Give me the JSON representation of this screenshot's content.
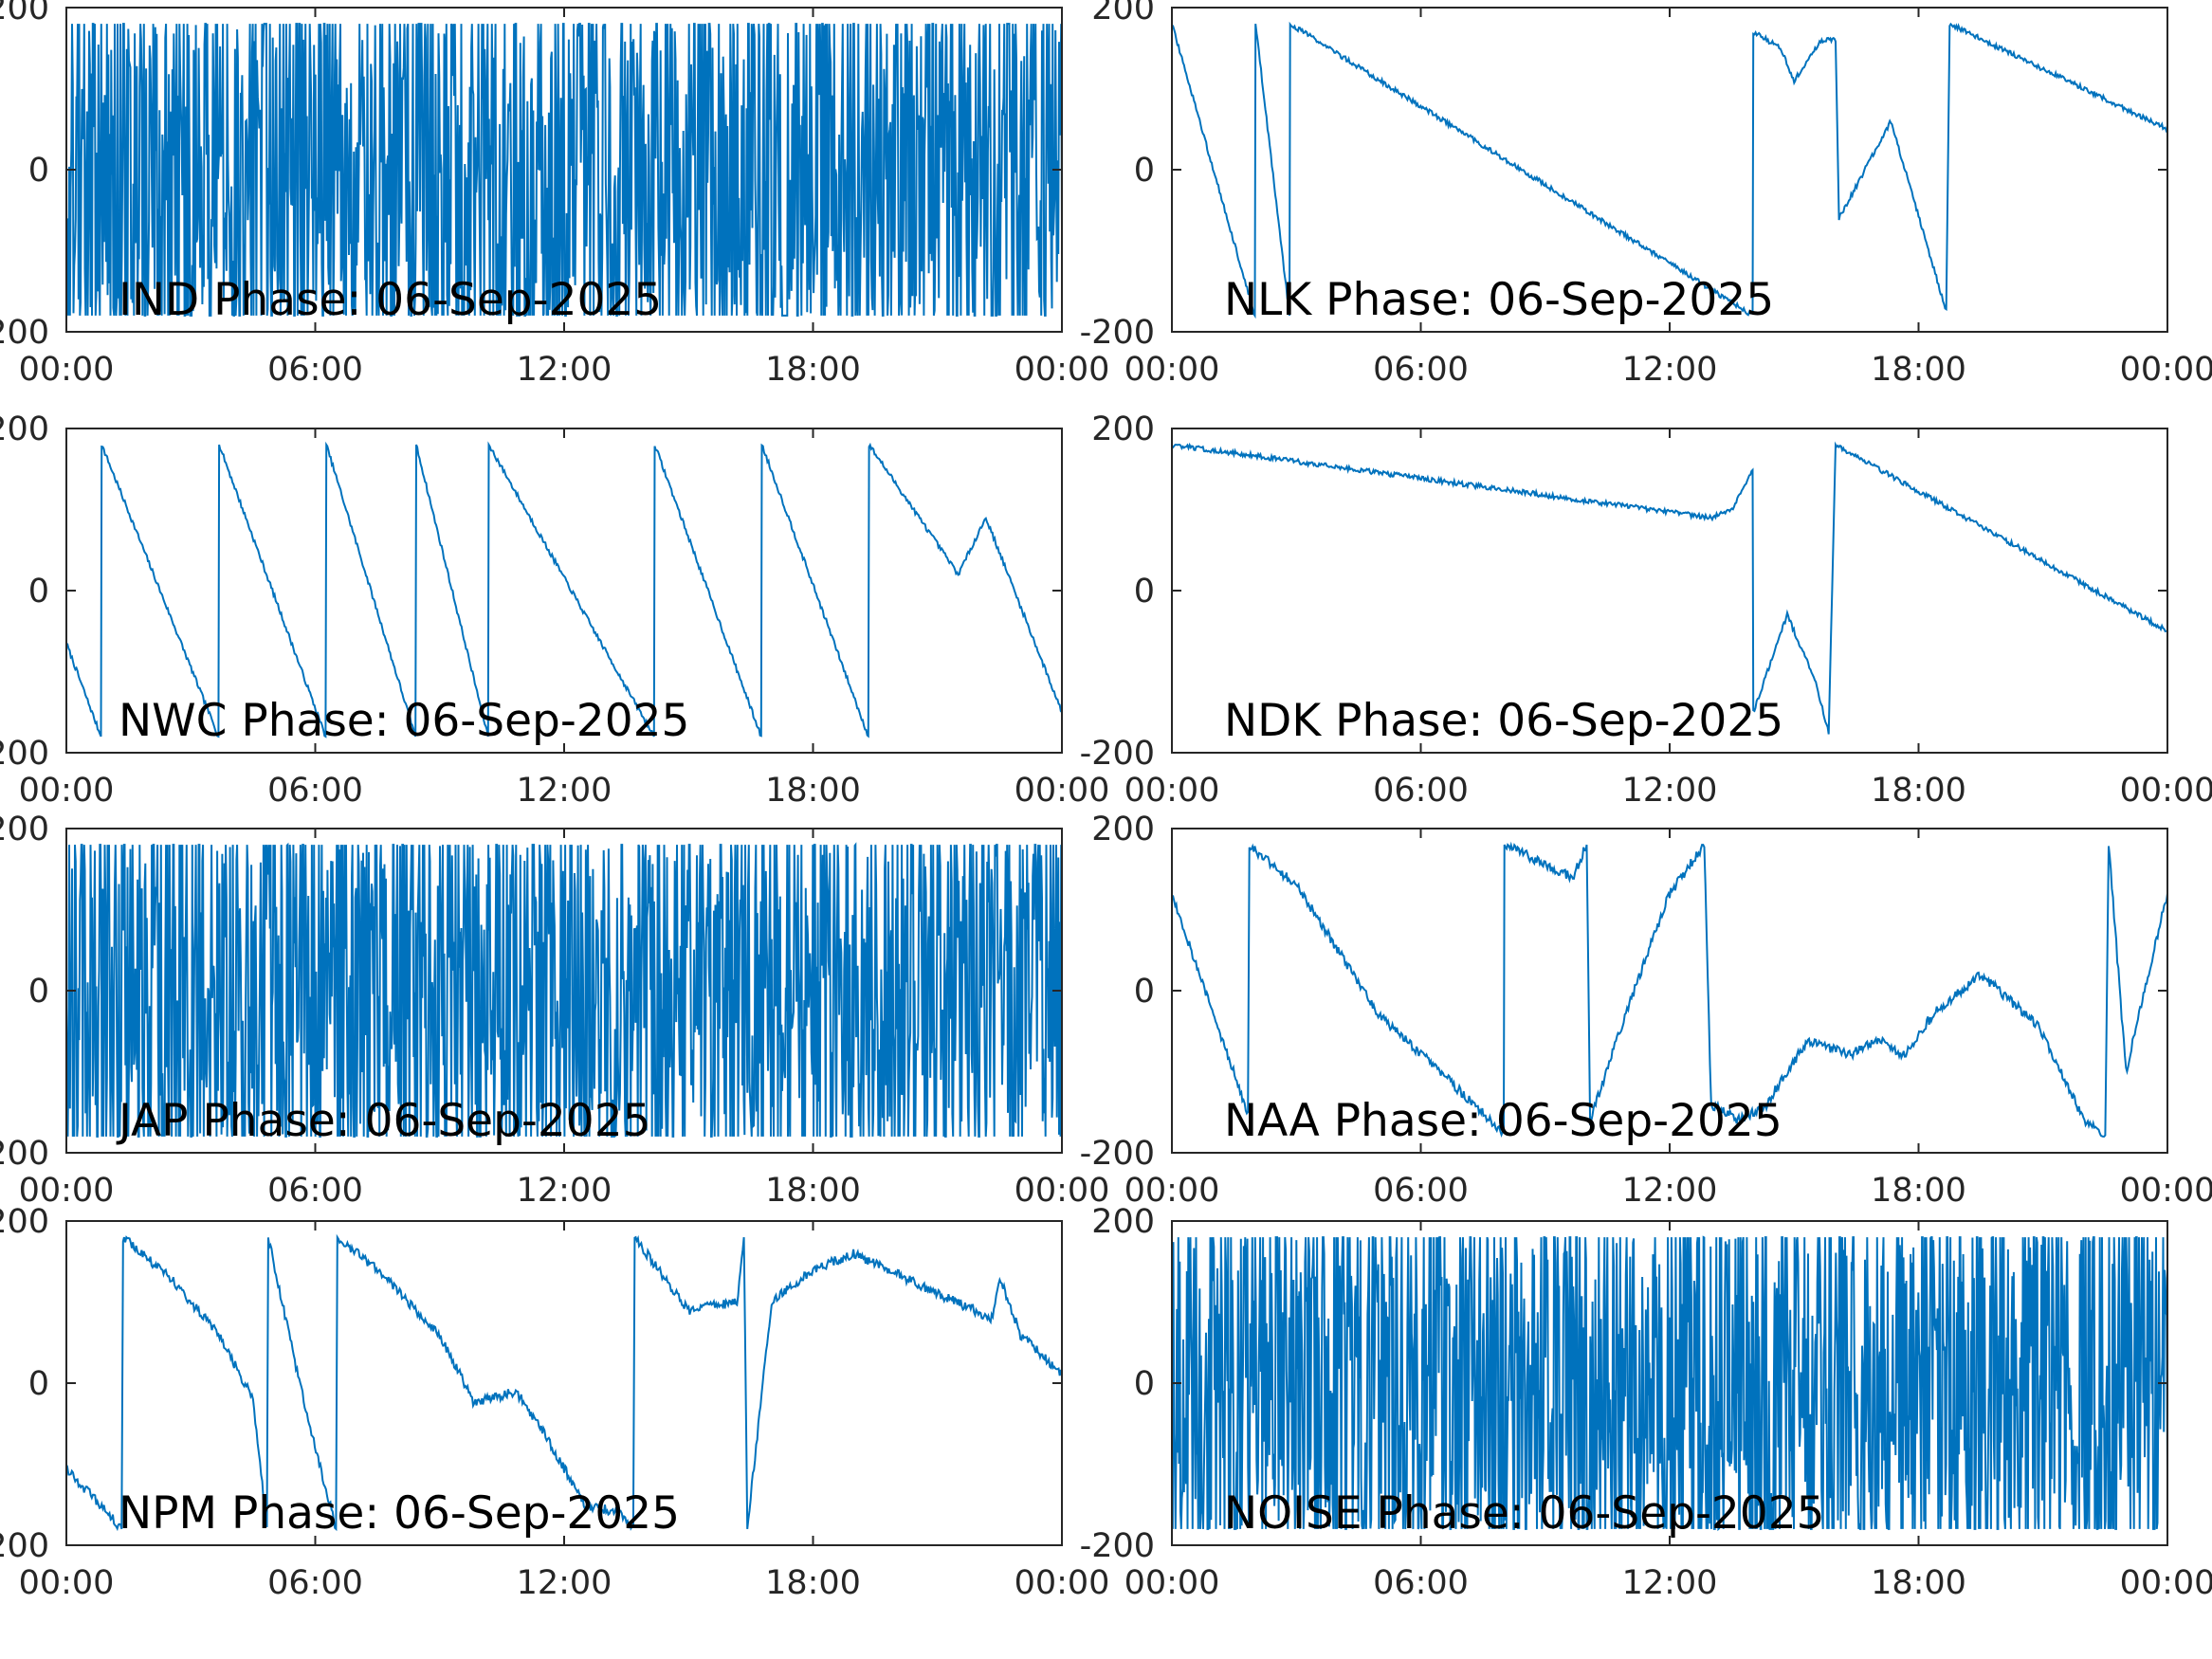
{
  "figure": {
    "background": "#ffffff",
    "line_color": "#0072bd",
    "axis_color": "#262626"
  },
  "chart_data": [
    {
      "type": "line",
      "station": "IND",
      "title": "IND Phase: 06-Sep-2025",
      "ylim": [
        -200,
        200
      ],
      "yticks": [
        "-200",
        "0",
        "200"
      ],
      "xlim": [
        "00:00",
        "24:00"
      ],
      "xticks": [
        "00:00",
        "06:00",
        "12:00",
        "18:00",
        "00:00"
      ],
      "xlabel": "",
      "ylabel": "",
      "grid": false,
      "pattern": "noise"
    },
    {
      "type": "line",
      "station": "NLK",
      "title": "NLK Phase: 06-Sep-2025",
      "ylim": [
        -200,
        200
      ],
      "yticks": [
        "-200",
        "0",
        "200"
      ],
      "xlim": [
        "00:00",
        "24:00"
      ],
      "xticks": [
        "00:00",
        "06:00",
        "12:00",
        "18:00",
        "00:00"
      ],
      "xlabel": "",
      "ylabel": "",
      "grid": false,
      "pattern": "sawtooth",
      "points": [
        [
          "00:00",
          180
        ],
        [
          "02:00",
          -180
        ],
        [
          "02:01",
          180
        ],
        [
          "02:50",
          -180
        ],
        [
          "02:51",
          180
        ],
        [
          "14:00",
          -180
        ],
        [
          "14:01",
          170
        ],
        [
          "14:40",
          150
        ],
        [
          "15:00",
          110
        ],
        [
          "15:40",
          160
        ],
        [
          "16:00",
          160
        ],
        [
          "16:05",
          -60
        ],
        [
          "17:20",
          60
        ],
        [
          "18:40",
          -175
        ],
        [
          "18:45",
          180
        ],
        [
          "24:00",
          50
        ]
      ]
    },
    {
      "type": "line",
      "station": "NWC",
      "title": "NWC Phase: 06-Sep-2025",
      "ylim": [
        -200,
        200
      ],
      "yticks": [
        "-200",
        "0",
        "200"
      ],
      "xlim": [
        "00:00",
        "24:00"
      ],
      "xticks": [
        "00:00",
        "06:00",
        "12:00",
        "18:00",
        "00:00"
      ],
      "xlabel": "",
      "ylabel": "",
      "grid": false,
      "pattern": "sawtooth",
      "points": [
        [
          "00:00",
          -65
        ],
        [
          "00:50",
          -180
        ],
        [
          "00:51",
          180
        ],
        [
          "03:40",
          -180
        ],
        [
          "03:41",
          180
        ],
        [
          "06:15",
          -180
        ],
        [
          "06:16",
          180
        ],
        [
          "08:25",
          -180
        ],
        [
          "08:26",
          180
        ],
        [
          "10:10",
          -180
        ],
        [
          "10:11",
          180
        ],
        [
          "14:10",
          -180
        ],
        [
          "14:11",
          180
        ],
        [
          "16:45",
          -180
        ],
        [
          "16:46",
          180
        ],
        [
          "19:20",
          -180
        ],
        [
          "19:21",
          180
        ],
        [
          "21:30",
          20
        ],
        [
          "22:10",
          90
        ],
        [
          "24:00",
          -150
        ]
      ]
    },
    {
      "type": "line",
      "station": "NDK",
      "title": "NDK Phase: 06-Sep-2025",
      "ylim": [
        -200,
        200
      ],
      "yticks": [
        "-200",
        "0",
        "200"
      ],
      "xlim": [
        "00:00",
        "24:00"
      ],
      "xticks": [
        "00:00",
        "06:00",
        "12:00",
        "18:00",
        "00:00"
      ],
      "xlabel": "",
      "ylabel": "",
      "grid": false,
      "pattern": "sawtooth",
      "points": [
        [
          "00:00",
          180
        ],
        [
          "13:00",
          90
        ],
        [
          "13:30",
          100
        ],
        [
          "14:00",
          150
        ],
        [
          "14:01",
          -150
        ],
        [
          "14:50",
          -30
        ],
        [
          "15:30",
          -110
        ],
        [
          "15:50",
          -175
        ],
        [
          "16:00",
          180
        ],
        [
          "24:00",
          -50
        ]
      ]
    },
    {
      "type": "line",
      "station": "JAP",
      "title": "JAP Phase: 06-Sep-2025",
      "ylim": [
        -200,
        200
      ],
      "yticks": [
        "-200",
        "0",
        "200"
      ],
      "xlim": [
        "00:00",
        "24:00"
      ],
      "xticks": [
        "00:00",
        "06:00",
        "12:00",
        "18:00",
        "00:00"
      ],
      "xlabel": "",
      "ylabel": "",
      "grid": false,
      "pattern": "noise"
    },
    {
      "type": "line",
      "station": "NAA",
      "title": "NAA Phase: 06-Sep-2025",
      "ylim": [
        -200,
        200
      ],
      "yticks": [
        "-200",
        "0",
        "200"
      ],
      "xlim": [
        "00:00",
        "24:00"
      ],
      "xticks": [
        "00:00",
        "06:00",
        "12:00",
        "18:00",
        "00:00"
      ],
      "xlabel": "",
      "ylabel": "",
      "grid": false,
      "pattern": "wander",
      "points": [
        [
          "00:00",
          120
        ],
        [
          "01:00",
          -30
        ],
        [
          "01:50",
          -150
        ],
        [
          "01:52",
          180
        ],
        [
          "03:00",
          130
        ],
        [
          "05:00",
          -30
        ],
        [
          "06:40",
          -110
        ],
        [
          "07:40",
          -160
        ],
        [
          "08:00",
          -180
        ],
        [
          "08:01",
          180
        ],
        [
          "09:40",
          140
        ],
        [
          "10:00",
          180
        ],
        [
          "10:05",
          -160
        ],
        [
          "11:00",
          -20
        ],
        [
          "12:00",
          120
        ],
        [
          "12:50",
          180
        ],
        [
          "13:00",
          -140
        ],
        [
          "13:40",
          -160
        ],
        [
          "14:20",
          -140
        ],
        [
          "14:50",
          -100
        ],
        [
          "15:20",
          -60
        ],
        [
          "16:20",
          -80
        ],
        [
          "17:00",
          -60
        ],
        [
          "17:40",
          -80
        ],
        [
          "18:20",
          -30
        ],
        [
          "19:30",
          20
        ],
        [
          "20:50",
          -40
        ],
        [
          "22:00",
          -160
        ],
        [
          "22:30",
          -180
        ],
        [
          "22:35",
          180
        ],
        [
          "23:00",
          -100
        ],
        [
          "24:00",
          120
        ]
      ]
    },
    {
      "type": "line",
      "station": "NPM",
      "title": "NPM Phase: 06-Sep-2025",
      "ylim": [
        -200,
        200
      ],
      "yticks": [
        "-200",
        "0",
        "200"
      ],
      "xlim": [
        "00:00",
        "24:00"
      ],
      "xticks": [
        "00:00",
        "06:00",
        "12:00",
        "18:00",
        "00:00"
      ],
      "xlabel": "",
      "ylabel": "",
      "grid": false,
      "pattern": "wander",
      "points": [
        [
          "00:00",
          -105
        ],
        [
          "01:20",
          -180
        ],
        [
          "01:22",
          180
        ],
        [
          "02:30",
          130
        ],
        [
          "03:40",
          60
        ],
        [
          "04:30",
          -20
        ],
        [
          "04:50",
          -180
        ],
        [
          "04:52",
          180
        ],
        [
          "05:40",
          -10
        ],
        [
          "06:30",
          -180
        ],
        [
          "06:32",
          180
        ],
        [
          "07:30",
          140
        ],
        [
          "09:00",
          60
        ],
        [
          "09:50",
          -25
        ],
        [
          "10:50",
          -10
        ],
        [
          "11:30",
          -60
        ],
        [
          "12:30",
          -150
        ],
        [
          "13:20",
          -160
        ],
        [
          "13:40",
          -180
        ],
        [
          "13:42",
          180
        ],
        [
          "15:00",
          90
        ],
        [
          "16:10",
          100
        ],
        [
          "16:20",
          180
        ],
        [
          "16:25",
          -180
        ],
        [
          "17:00",
          100
        ],
        [
          "18:00",
          140
        ],
        [
          "19:00",
          160
        ],
        [
          "21:00",
          110
        ],
        [
          "22:20",
          80
        ],
        [
          "22:30",
          130
        ],
        [
          "23:00",
          60
        ],
        [
          "24:00",
          10
        ]
      ]
    },
    {
      "type": "line",
      "station": "NOISE",
      "title": "NOISE Phase: 06-Sep-2025",
      "ylim": [
        -200,
        200
      ],
      "yticks": [
        "-200",
        "0",
        "200"
      ],
      "xlim": [
        "00:00",
        "24:00"
      ],
      "xticks": [
        "00:00",
        "06:00",
        "12:00",
        "18:00",
        "00:00"
      ],
      "xlabel": "",
      "ylabel": "",
      "grid": false,
      "pattern": "noise"
    }
  ]
}
